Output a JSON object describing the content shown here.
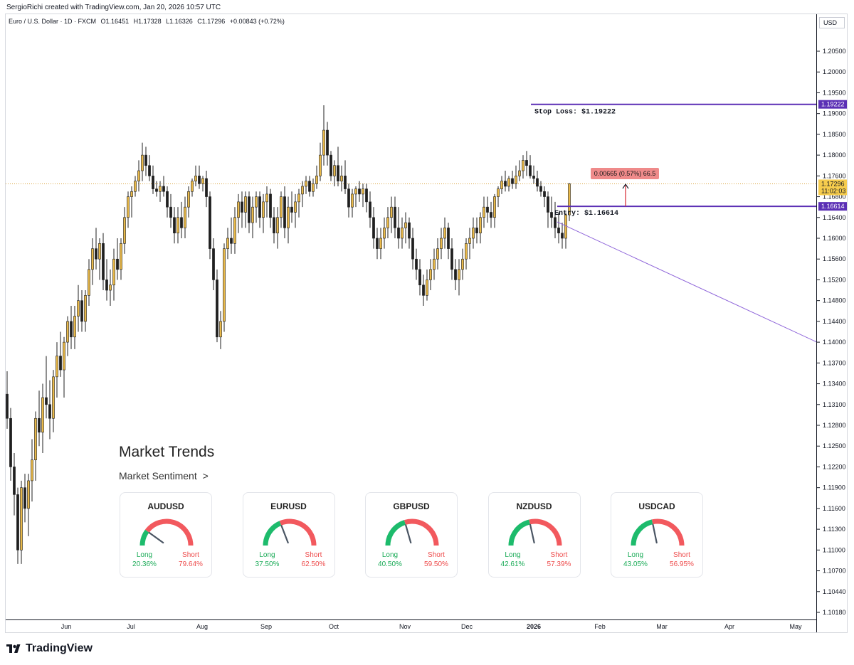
{
  "credit": "SergioRichi created with TradingView.com, Jan 20, 2026 10:57 UTC",
  "legend": {
    "symbol": "Euro / U.S. Dollar · 1D · FXCM",
    "open": "O1.16451",
    "high": "H1.17328",
    "low": "L1.16326",
    "close": "C1.17296",
    "change": "+0.00843 (+0.72%)"
  },
  "currency_button": "USD",
  "brand": "TradingView",
  "chart_data": {
    "type": "candlestick",
    "instrument": "EURUSD",
    "interval": "1D",
    "price_axis": {
      "ticks": [
        "1.20500",
        "1.20000",
        "1.19500",
        "1.19000",
        "1.18500",
        "1.18000",
        "1.17600",
        "1.16800",
        "1.16400",
        "1.16000",
        "1.15600",
        "1.15200",
        "1.14800",
        "1.14400",
        "1.14000",
        "1.13700",
        "1.13400",
        "1.13100",
        "1.12800",
        "1.12500",
        "1.12200",
        "1.11900",
        "1.11600",
        "1.11300",
        "1.11000",
        "1.10700",
        "1.10440",
        "1.10180"
      ],
      "scale_ticks": [
        1.205,
        1.2,
        1.195,
        1.19,
        1.185,
        1.18,
        1.176,
        1.168,
        1.164,
        1.16,
        1.156,
        1.152,
        1.148,
        1.144,
        1.14,
        1.137,
        1.134,
        1.131,
        1.128,
        1.125,
        1.122,
        1.119,
        1.116,
        1.113,
        1.11,
        1.107,
        1.1044,
        1.1018
      ]
    },
    "time_axis": {
      "labels": [
        "Jun",
        "Jul",
        "Aug",
        "Sep",
        "Oct",
        "Nov",
        "Dec",
        "2026",
        "Feb",
        "Mar",
        "Apr",
        "May"
      ],
      "bold": [
        "2026"
      ]
    },
    "current_price": {
      "value": 1.17296,
      "label": "1.17296",
      "countdown": "11:02:03"
    },
    "stop_loss": {
      "value": 1.19222,
      "label": "1.19222",
      "text": "Stop Loss: $1.19222"
    },
    "entry": {
      "value": 1.16614,
      "label": "1.16614",
      "text": "Entry: $1.16614"
    },
    "measure": {
      "text": "0.00665 (0.57%) 66.5",
      "from": 1.16614,
      "to": 1.17279
    },
    "trend_line": {
      "from": 1.16314,
      "to": 1.14
    },
    "candles": [
      [
        1.1325,
        1.1358,
        1.1275,
        1.129
      ],
      [
        1.129,
        1.1305,
        1.12,
        1.122
      ],
      [
        1.122,
        1.124,
        1.115,
        1.118
      ],
      [
        1.118,
        1.119,
        1.108,
        1.11
      ],
      [
        1.11,
        1.12,
        1.108,
        1.119
      ],
      [
        1.119,
        1.121,
        1.114,
        1.116
      ],
      [
        1.116,
        1.121,
        1.112,
        1.12
      ],
      [
        1.12,
        1.126,
        1.117,
        1.123
      ],
      [
        1.123,
        1.13,
        1.12,
        1.129
      ],
      [
        1.129,
        1.133,
        1.125,
        1.127
      ],
      [
        1.127,
        1.134,
        1.124,
        1.132
      ],
      [
        1.132,
        1.138,
        1.129,
        1.131
      ],
      [
        1.131,
        1.1345,
        1.126,
        1.129
      ],
      [
        1.129,
        1.136,
        1.127,
        1.135
      ],
      [
        1.135,
        1.14,
        1.132,
        1.138
      ],
      [
        1.138,
        1.142,
        1.135,
        1.136
      ],
      [
        1.136,
        1.141,
        1.132,
        1.14
      ],
      [
        1.14,
        1.145,
        1.138,
        1.144
      ],
      [
        1.144,
        1.147,
        1.139,
        1.141
      ],
      [
        1.141,
        1.147,
        1.139,
        1.145
      ],
      [
        1.145,
        1.151,
        1.142,
        1.148
      ],
      [
        1.148,
        1.15,
        1.142,
        1.144
      ],
      [
        1.144,
        1.15,
        1.142,
        1.149
      ],
      [
        1.149,
        1.156,
        1.147,
        1.154
      ],
      [
        1.154,
        1.16,
        1.151,
        1.158
      ],
      [
        1.158,
        1.162,
        1.154,
        1.156
      ],
      [
        1.156,
        1.16,
        1.152,
        1.159
      ],
      [
        1.159,
        1.161,
        1.15,
        1.152
      ],
      [
        1.152,
        1.156,
        1.148,
        1.15
      ],
      [
        1.15,
        1.154,
        1.147,
        1.151
      ],
      [
        1.151,
        1.158,
        1.148,
        1.156
      ],
      [
        1.156,
        1.16,
        1.152,
        1.154
      ],
      [
        1.154,
        1.16,
        1.152,
        1.159
      ],
      [
        1.159,
        1.166,
        1.157,
        1.164
      ],
      [
        1.164,
        1.17,
        1.162,
        1.168
      ],
      [
        1.168,
        1.172,
        1.164,
        1.17
      ],
      [
        1.17,
        1.176,
        1.168,
        1.174
      ],
      [
        1.174,
        1.179,
        1.17,
        1.177
      ],
      [
        1.177,
        1.183,
        1.174,
        1.18
      ],
      [
        1.18,
        1.182,
        1.176,
        1.178
      ],
      [
        1.178,
        1.18,
        1.174,
        1.176
      ],
      [
        1.176,
        1.178,
        1.169,
        1.171
      ],
      [
        1.171,
        1.174,
        1.168,
        1.17
      ],
      [
        1.17,
        1.174,
        1.167,
        1.172
      ],
      [
        1.172,
        1.176,
        1.168,
        1.17
      ],
      [
        1.17,
        1.172,
        1.164,
        1.166
      ],
      [
        1.166,
        1.169,
        1.162,
        1.164
      ],
      [
        1.164,
        1.166,
        1.159,
        1.161
      ],
      [
        1.161,
        1.166,
        1.159,
        1.164
      ],
      [
        1.164,
        1.167,
        1.16,
        1.162
      ],
      [
        1.162,
        1.168,
        1.16,
        1.166
      ],
      [
        1.166,
        1.172,
        1.164,
        1.17
      ],
      [
        1.17,
        1.175,
        1.168,
        1.174
      ],
      [
        1.174,
        1.178,
        1.172,
        1.176
      ],
      [
        1.176,
        1.178,
        1.171,
        1.173
      ],
      [
        1.173,
        1.176,
        1.17,
        1.175
      ],
      [
        1.175,
        1.177,
        1.166,
        1.168
      ],
      [
        1.168,
        1.17,
        1.156,
        1.158
      ],
      [
        1.158,
        1.16,
        1.15,
        1.152
      ],
      [
        1.152,
        1.154,
        1.14,
        1.141
      ],
      [
        1.141,
        1.146,
        1.139,
        1.144
      ],
      [
        1.144,
        1.159,
        1.142,
        1.158
      ],
      [
        1.158,
        1.162,
        1.156,
        1.16
      ],
      [
        1.16,
        1.164,
        1.157,
        1.159
      ],
      [
        1.159,
        1.166,
        1.157,
        1.164
      ],
      [
        1.164,
        1.169,
        1.161,
        1.167
      ],
      [
        1.167,
        1.17,
        1.162,
        1.165
      ],
      [
        1.165,
        1.17,
        1.162,
        1.168
      ],
      [
        1.168,
        1.17,
        1.161,
        1.163
      ],
      [
        1.163,
        1.168,
        1.16,
        1.166
      ],
      [
        1.166,
        1.17,
        1.163,
        1.168
      ],
      [
        1.168,
        1.17,
        1.162,
        1.164
      ],
      [
        1.164,
        1.169,
        1.161,
        1.167
      ],
      [
        1.167,
        1.172,
        1.164,
        1.169
      ],
      [
        1.169,
        1.171,
        1.162,
        1.164
      ],
      [
        1.164,
        1.166,
        1.159,
        1.161
      ],
      [
        1.161,
        1.166,
        1.158,
        1.164
      ],
      [
        1.164,
        1.17,
        1.162,
        1.168
      ],
      [
        1.168,
        1.172,
        1.16,
        1.162
      ],
      [
        1.162,
        1.168,
        1.159,
        1.166
      ],
      [
        1.166,
        1.17,
        1.163,
        1.165
      ],
      [
        1.165,
        1.169,
        1.162,
        1.167
      ],
      [
        1.167,
        1.171,
        1.164,
        1.169
      ],
      [
        1.169,
        1.174,
        1.166,
        1.172
      ],
      [
        1.172,
        1.176,
        1.169,
        1.174
      ],
      [
        1.174,
        1.176,
        1.168,
        1.17
      ],
      [
        1.17,
        1.175,
        1.168,
        1.173
      ],
      [
        1.173,
        1.178,
        1.171,
        1.176
      ],
      [
        1.176,
        1.183,
        1.174,
        1.18
      ],
      [
        1.18,
        1.192,
        1.178,
        1.186
      ],
      [
        1.186,
        1.188,
        1.178,
        1.18
      ],
      [
        1.18,
        1.181,
        1.174,
        1.176
      ],
      [
        1.176,
        1.179,
        1.172,
        1.178
      ],
      [
        1.178,
        1.182,
        1.172,
        1.174
      ],
      [
        1.174,
        1.178,
        1.17,
        1.176
      ],
      [
        1.176,
        1.179,
        1.169,
        1.171
      ],
      [
        1.171,
        1.173,
        1.164,
        1.166
      ],
      [
        1.166,
        1.171,
        1.164,
        1.169
      ],
      [
        1.169,
        1.172,
        1.166,
        1.171
      ],
      [
        1.171,
        1.174,
        1.167,
        1.169
      ],
      [
        1.169,
        1.173,
        1.166,
        1.171
      ],
      [
        1.171,
        1.173,
        1.165,
        1.167
      ],
      [
        1.167,
        1.17,
        1.162,
        1.164
      ],
      [
        1.164,
        1.166,
        1.158,
        1.16
      ],
      [
        1.16,
        1.162,
        1.156,
        1.158
      ],
      [
        1.158,
        1.162,
        1.156,
        1.16
      ],
      [
        1.16,
        1.164,
        1.158,
        1.162
      ],
      [
        1.162,
        1.166,
        1.16,
        1.164
      ],
      [
        1.164,
        1.168,
        1.161,
        1.166
      ],
      [
        1.166,
        1.168,
        1.16,
        1.162
      ],
      [
        1.162,
        1.166,
        1.158,
        1.16
      ],
      [
        1.16,
        1.164,
        1.158,
        1.162
      ],
      [
        1.162,
        1.165,
        1.159,
        1.163
      ],
      [
        1.163,
        1.164,
        1.158,
        1.16
      ],
      [
        1.16,
        1.162,
        1.154,
        1.156
      ],
      [
        1.156,
        1.158,
        1.152,
        1.154
      ],
      [
        1.154,
        1.156,
        1.149,
        1.151
      ],
      [
        1.151,
        1.153,
        1.147,
        1.149
      ],
      [
        1.149,
        1.154,
        1.148,
        1.152
      ],
      [
        1.152,
        1.156,
        1.15,
        1.154
      ],
      [
        1.154,
        1.158,
        1.152,
        1.156
      ],
      [
        1.156,
        1.16,
        1.154,
        1.158
      ],
      [
        1.158,
        1.162,
        1.156,
        1.16
      ],
      [
        1.16,
        1.164,
        1.158,
        1.162
      ],
      [
        1.162,
        1.163,
        1.156,
        1.158
      ],
      [
        1.158,
        1.16,
        1.152,
        1.154
      ],
      [
        1.154,
        1.156,
        1.15,
        1.152
      ],
      [
        1.152,
        1.156,
        1.149,
        1.154
      ],
      [
        1.154,
        1.158,
        1.152,
        1.156
      ],
      [
        1.156,
        1.16,
        1.154,
        1.159
      ],
      [
        1.159,
        1.162,
        1.156,
        1.16
      ],
      [
        1.16,
        1.164,
        1.158,
        1.162
      ],
      [
        1.162,
        1.164,
        1.159,
        1.161
      ],
      [
        1.161,
        1.165,
        1.159,
        1.164
      ],
      [
        1.164,
        1.168,
        1.162,
        1.166
      ],
      [
        1.166,
        1.168,
        1.163,
        1.165
      ],
      [
        1.165,
        1.167,
        1.162,
        1.164
      ],
      [
        1.164,
        1.169,
        1.162,
        1.168
      ],
      [
        1.168,
        1.172,
        1.166,
        1.171
      ],
      [
        1.171,
        1.176,
        1.169,
        1.174
      ],
      [
        1.174,
        1.177,
        1.17,
        1.172
      ],
      [
        1.172,
        1.176,
        1.17,
        1.175
      ],
      [
        1.175,
        1.177,
        1.171,
        1.173
      ],
      [
        1.173,
        1.178,
        1.171,
        1.176
      ],
      [
        1.176,
        1.179,
        1.174,
        1.177
      ],
      [
        1.177,
        1.18,
        1.175,
        1.179
      ],
      [
        1.179,
        1.181,
        1.176,
        1.178
      ],
      [
        1.178,
        1.18,
        1.175,
        1.176
      ],
      [
        1.176,
        1.178,
        1.173,
        1.175
      ],
      [
        1.175,
        1.177,
        1.17,
        1.172
      ],
      [
        1.172,
        1.174,
        1.168,
        1.17
      ],
      [
        1.17,
        1.172,
        1.166,
        1.168
      ],
      [
        1.168,
        1.17,
        1.162,
        1.165
      ],
      [
        1.165,
        1.168,
        1.162,
        1.164
      ],
      [
        1.164,
        1.167,
        1.16,
        1.162
      ],
      [
        1.162,
        1.165,
        1.159,
        1.161
      ],
      [
        1.161,
        1.163,
        1.158,
        1.16
      ],
      [
        1.16,
        1.165,
        1.158,
        1.1645
      ],
      [
        1.1645,
        1.1733,
        1.1633,
        1.173
      ]
    ]
  },
  "market_trends": {
    "title": "Market Trends",
    "subtitle": "Market Sentiment",
    "chevron": ">",
    "cards": [
      {
        "pair": "AUDUSD",
        "long_label": "Long",
        "short_label": "Short",
        "long": "20.36%",
        "short": "79.64%",
        "long_value": 20.36
      },
      {
        "pair": "EURUSD",
        "long_label": "Long",
        "short_label": "Short",
        "long": "37.50%",
        "short": "62.50%",
        "long_value": 37.5
      },
      {
        "pair": "GBPUSD",
        "long_label": "Long",
        "short_label": "Short",
        "long": "40.50%",
        "short": "59.50%",
        "long_value": 40.5
      },
      {
        "pair": "NZDUSD",
        "long_label": "Long",
        "short_label": "Short",
        "long": "42.61%",
        "short": "57.39%",
        "long_value": 42.61
      },
      {
        "pair": "USDCAD",
        "long_label": "Long",
        "short_label": "Short",
        "long": "43.05%",
        "short": "56.95%",
        "long_value": 43.05
      }
    ]
  },
  "colors": {
    "candle_up": "#e9b949",
    "candle_down": "#1f1f1f",
    "stop_line": "#5b2fb5",
    "trend_line": "#8d63d9",
    "measure_label": "#ef8a8a",
    "measure_arrow": "#d9363e",
    "current_label": "#f6cc4d",
    "gauge_long": "#1dbb6c",
    "gauge_short": "#f2595e"
  }
}
